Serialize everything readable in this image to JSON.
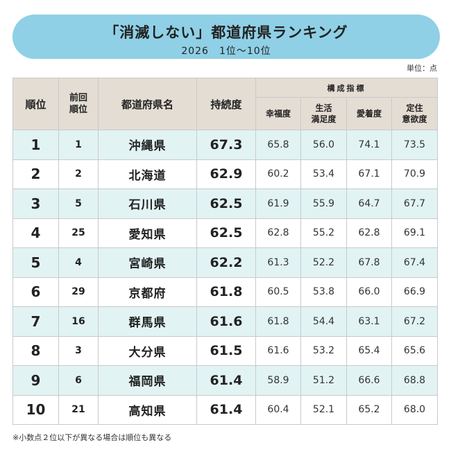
{
  "title": "「消滅しない」都道府県ランキング",
  "subtitle": "2026　1位～10位",
  "unit_label": "単位：点",
  "headers": {
    "rank": "順位",
    "prev_rank": "前回\n順位",
    "prefecture": "都道府県名",
    "sustainability": "持続度",
    "group": "構成指標",
    "happiness": "幸福度",
    "life_satisfaction": "生活\n満足度",
    "attachment": "愛着度",
    "settle_intent": "定住\n意欲度"
  },
  "rows": [
    {
      "rank": "1",
      "prev": "1",
      "pref": "沖縄県",
      "score": "67.3",
      "happiness": "65.8",
      "life": "56.0",
      "attach": "74.1",
      "settle": "73.5"
    },
    {
      "rank": "2",
      "prev": "2",
      "pref": "北海道",
      "score": "62.9",
      "happiness": "60.2",
      "life": "53.4",
      "attach": "67.1",
      "settle": "70.9"
    },
    {
      "rank": "3",
      "prev": "5",
      "pref": "石川県",
      "score": "62.5",
      "happiness": "61.9",
      "life": "55.9",
      "attach": "64.7",
      "settle": "67.7"
    },
    {
      "rank": "4",
      "prev": "25",
      "pref": "愛知県",
      "score": "62.5",
      "happiness": "62.8",
      "life": "55.2",
      "attach": "62.8",
      "settle": "69.1"
    },
    {
      "rank": "5",
      "prev": "4",
      "pref": "宮崎県",
      "score": "62.2",
      "happiness": "61.3",
      "life": "52.2",
      "attach": "67.8",
      "settle": "67.4"
    },
    {
      "rank": "6",
      "prev": "29",
      "pref": "京都府",
      "score": "61.8",
      "happiness": "60.5",
      "life": "53.8",
      "attach": "66.0",
      "settle": "66.9"
    },
    {
      "rank": "7",
      "prev": "16",
      "pref": "群馬県",
      "score": "61.6",
      "happiness": "61.8",
      "life": "54.4",
      "attach": "63.1",
      "settle": "67.2"
    },
    {
      "rank": "8",
      "prev": "3",
      "pref": "大分県",
      "score": "61.5",
      "happiness": "61.6",
      "life": "53.2",
      "attach": "65.4",
      "settle": "65.6"
    },
    {
      "rank": "9",
      "prev": "6",
      "pref": "福岡県",
      "score": "61.4",
      "happiness": "58.9",
      "life": "51.2",
      "attach": "66.6",
      "settle": "68.8"
    },
    {
      "rank": "10",
      "prev": "21",
      "pref": "高知県",
      "score": "61.4",
      "happiness": "60.4",
      "life": "52.1",
      "attach": "65.2",
      "settle": "68.0"
    }
  ],
  "footnote": "※小数点２位以下が異なる場合は順位も異なる",
  "colors": {
    "banner": "#8fd0e6",
    "header_bg": "#e4ddd4",
    "row_alt": "#e2f3f4"
  }
}
